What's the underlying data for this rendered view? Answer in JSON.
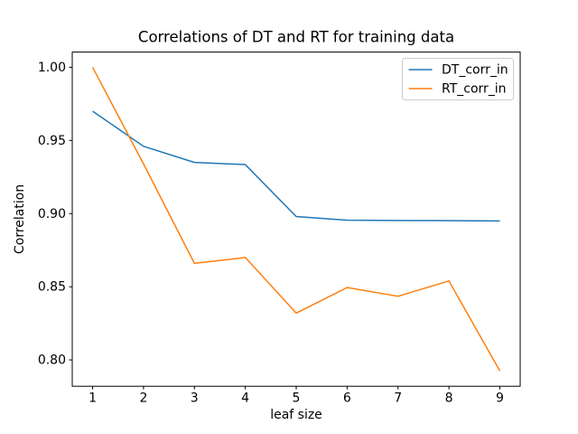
{
  "chart_data": {
    "type": "line",
    "title": "Correlations of DT and RT for training data",
    "xlabel": "leaf size",
    "ylabel": "Correlation",
    "x": [
      1,
      2,
      3,
      4,
      5,
      6,
      7,
      8,
      9
    ],
    "series": [
      {
        "name": "DT_corr_in",
        "color": "#1f77b4",
        "values": [
          0.97,
          0.946,
          0.935,
          0.9335,
          0.898,
          0.8955,
          0.8953,
          0.8952,
          0.895
        ]
      },
      {
        "name": "RT_corr_in",
        "color": "#ff7f0e",
        "values": [
          1.0,
          0.934,
          0.866,
          0.87,
          0.832,
          0.8495,
          0.8435,
          0.854,
          0.7925
        ]
      }
    ],
    "xlim": [
      0.6,
      9.4
    ],
    "ylim": [
      0.782,
      1.0104
    ],
    "xticks": [
      1,
      2,
      3,
      4,
      5,
      6,
      7,
      8,
      9
    ],
    "xtick_labels": [
      "1",
      "2",
      "3",
      "4",
      "5",
      "6",
      "7",
      "8",
      "9"
    ],
    "yticks": [
      0.8,
      0.85,
      0.9,
      0.95,
      1.0
    ],
    "ytick_labels": [
      "0.80",
      "0.85",
      "0.90",
      "0.95",
      "1.00"
    ],
    "grid": false,
    "legend_position": "upper right",
    "figure_bg": "#ffffff",
    "axes_bg": "#ffffff",
    "spine_color": "#000000",
    "legend_border_color": "#cccccc",
    "line_width": 1.5
  }
}
